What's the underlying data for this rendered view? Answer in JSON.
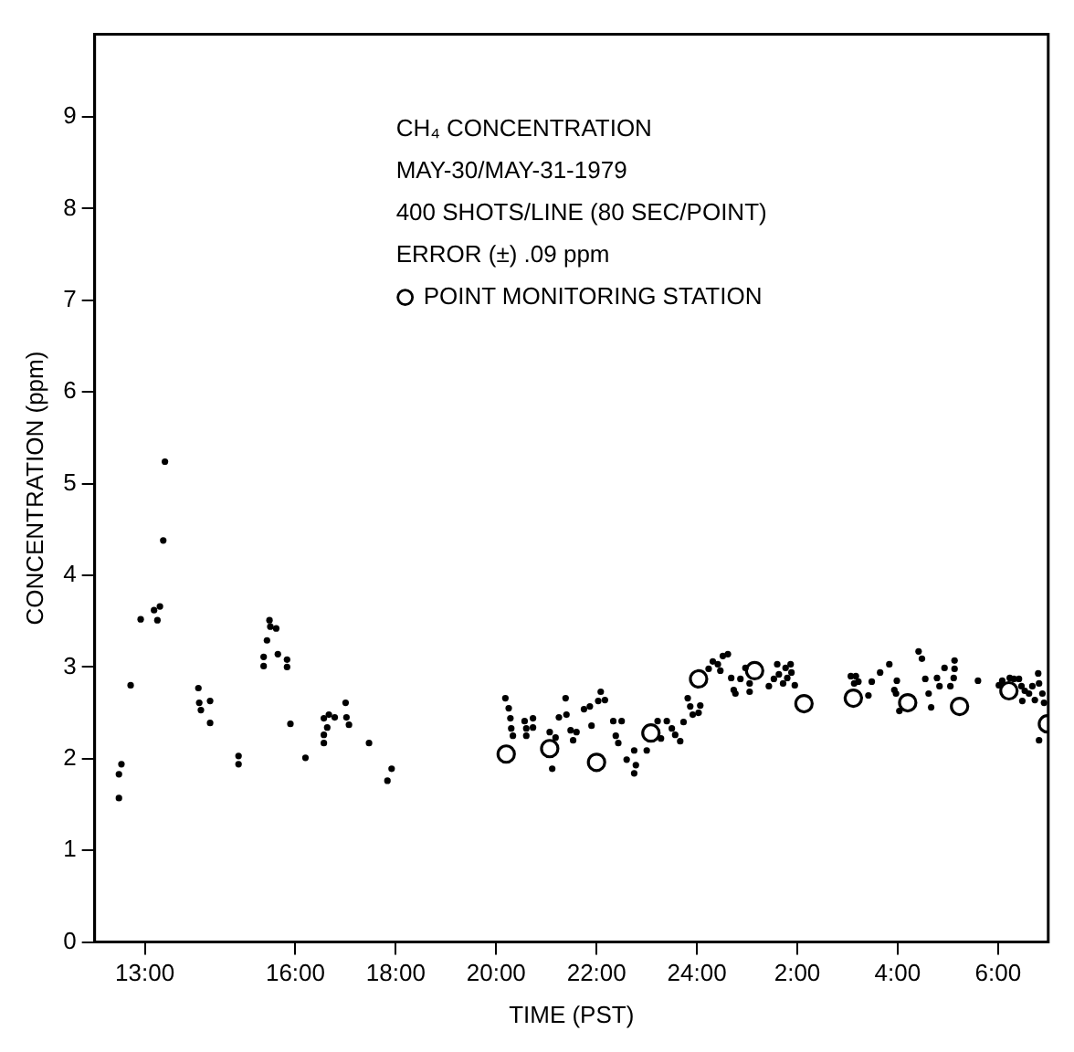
{
  "chart_data": {
    "type": "scatter",
    "xlabel": "TIME (PST)",
    "ylabel": "CONCENTRATION (ppm)",
    "annotations": [
      "CH₄ CONCENTRATION",
      "MAY-30/MAY-31-1979",
      "400 SHOTS/LINE (80 SEC/POINT)",
      "ERROR (±) .09 ppm"
    ],
    "xlim": [
      "1979-05-30T12:00",
      "1979-05-31T07:00"
    ],
    "ylim": [
      0,
      9.9
    ],
    "xticks": [
      {
        "value": "1979-05-30T13:00",
        "label": "13:00"
      },
      {
        "value": "1979-05-30T16:00",
        "label": "16:00"
      },
      {
        "value": "1979-05-30T18:00",
        "label": "18:00"
      },
      {
        "value": "1979-05-30T20:00",
        "label": "20:00"
      },
      {
        "value": "1979-05-30T22:00",
        "label": "22:00"
      },
      {
        "value": "1979-05-31T00:00",
        "label": "24:00"
      },
      {
        "value": "1979-05-31T02:00",
        "label": "2:00"
      },
      {
        "value": "1979-05-31T04:00",
        "label": "4:00"
      },
      {
        "value": "1979-05-31T06:00",
        "label": "6:00"
      }
    ],
    "yticks": [
      0,
      1,
      2,
      3,
      4,
      5,
      6,
      7,
      8,
      9
    ],
    "grid": false,
    "legend": "top",
    "series": [
      {
        "color": "#000000",
        "marker": "circle",
        "x": [
          "1979-05-30T12:29",
          "1979-05-30T12:32",
          "1979-05-30T12:29",
          "1979-05-30T12:43",
          "1979-05-30T12:55",
          "1979-05-30T13:11",
          "1979-05-30T13:18",
          "1979-05-30T13:15",
          "1979-05-30T13:22",
          "1979-05-30T13:24",
          "1979-05-30T14:04",
          "1979-05-30T14:05",
          "1979-05-30T14:07",
          "1979-05-30T14:18",
          "1979-05-30T14:18",
          "1979-05-30T14:52",
          "1979-05-30T14:52",
          "1979-05-30T15:22",
          "1979-05-30T15:22",
          "1979-05-30T15:26",
          "1979-05-30T15:29",
          "1979-05-30T15:30",
          "1979-05-30T15:37",
          "1979-05-30T15:39",
          "1979-05-30T15:50",
          "1979-05-30T15:50",
          "1979-05-30T15:54",
          "1979-05-30T16:12",
          "1979-05-30T16:34",
          "1979-05-30T16:34",
          "1979-05-30T16:34",
          "1979-05-30T16:38",
          "1979-05-30T16:40",
          "1979-05-30T16:47",
          "1979-05-30T17:00",
          "1979-05-30T17:01",
          "1979-05-30T17:04",
          "1979-05-30T17:28",
          "1979-05-30T17:50",
          "1979-05-30T17:55",
          "1979-05-30T20:11",
          "1979-05-30T20:15",
          "1979-05-30T20:17",
          "1979-05-30T20:18",
          "1979-05-30T20:20",
          "1979-05-30T20:34",
          "1979-05-30T20:36",
          "1979-05-30T20:36",
          "1979-05-30T20:44",
          "1979-05-30T20:44",
          "1979-05-30T21:04",
          "1979-05-30T21:07",
          "1979-05-30T21:11",
          "1979-05-30T21:15",
          "1979-05-30T21:23",
          "1979-05-30T21:24",
          "1979-05-30T21:29",
          "1979-05-30T21:32",
          "1979-05-30T21:36",
          "1979-05-30T21:45",
          "1979-05-30T21:52",
          "1979-05-30T21:54",
          "1979-05-30T22:02",
          "1979-05-30T22:05",
          "1979-05-30T22:10",
          "1979-05-30T22:20",
          "1979-05-30T22:23",
          "1979-05-30T22:26",
          "1979-05-30T22:30",
          "1979-05-30T22:36",
          "1979-05-30T22:45",
          "1979-05-30T22:47",
          "1979-05-30T22:45",
          "1979-05-30T23:00",
          "1979-05-30T23:13",
          "1979-05-30T23:17",
          "1979-05-30T23:24",
          "1979-05-30T23:30",
          "1979-05-30T23:34",
          "1979-05-30T23:40",
          "1979-05-30T23:44",
          "1979-05-30T23:49",
          "1979-05-30T23:52",
          "1979-05-30T23:55",
          "1979-05-31T00:02",
          "1979-05-31T00:04",
          "1979-05-31T00:14",
          "1979-05-31T00:19",
          "1979-05-31T00:25",
          "1979-05-31T00:28",
          "1979-05-31T00:31",
          "1979-05-31T00:37",
          "1979-05-31T00:41",
          "1979-05-31T00:44",
          "1979-05-31T00:46",
          "1979-05-31T00:52",
          "1979-05-31T00:58",
          "1979-05-31T01:03",
          "1979-05-31T01:03",
          "1979-05-31T01:26",
          "1979-05-31T01:32",
          "1979-05-31T01:36",
          "1979-05-31T01:38",
          "1979-05-31T01:43",
          "1979-05-31T01:46",
          "1979-05-31T01:48",
          "1979-05-31T01:52",
          "1979-05-31T01:53",
          "1979-05-31T01:57",
          "1979-05-31T03:04",
          "1979-05-31T03:10",
          "1979-05-31T03:13",
          "1979-05-31T03:08",
          "1979-05-31T03:25",
          "1979-05-31T03:29",
          "1979-05-31T03:39",
          "1979-05-31T03:50",
          "1979-05-31T03:56",
          "1979-05-31T03:59",
          "1979-05-31T03:58",
          "1979-05-31T04:02",
          "1979-05-31T04:25",
          "1979-05-31T04:29",
          "1979-05-31T04:33",
          "1979-05-31T04:37",
          "1979-05-31T04:40",
          "1979-05-31T04:47",
          "1979-05-31T04:50",
          "1979-05-31T04:56",
          "1979-05-31T05:03",
          "1979-05-31T05:08",
          "1979-05-31T05:08",
          "1979-05-31T05:07",
          "1979-05-31T05:36",
          "1979-05-31T06:01",
          "1979-05-31T06:05",
          "1979-05-31T06:14",
          "1979-05-31T06:19",
          "1979-05-31T06:25",
          "1979-05-31T06:28",
          "1979-05-31T06:32",
          "1979-05-31T06:37",
          "1979-05-31T06:41",
          "1979-05-31T06:48",
          "1979-05-31T06:49",
          "1979-05-31T06:29",
          "1979-05-31T06:44",
          "1979-05-31T06:53",
          "1979-05-31T06:55",
          "1979-05-31T06:49"
        ],
        "values": [
          1.83,
          1.94,
          1.57,
          2.8,
          3.52,
          3.62,
          3.66,
          3.51,
          4.38,
          5.24,
          2.77,
          2.61,
          2.53,
          2.63,
          2.39,
          2.03,
          1.94,
          3.11,
          3.01,
          3.29,
          3.51,
          3.44,
          3.42,
          3.14,
          3.08,
          3.0,
          2.38,
          2.01,
          2.44,
          2.26,
          2.17,
          2.34,
          2.48,
          2.45,
          2.61,
          2.45,
          2.37,
          2.17,
          1.76,
          1.89,
          2.66,
          2.55,
          2.44,
          2.33,
          2.25,
          2.41,
          2.33,
          2.25,
          2.44,
          2.34,
          2.29,
          1.89,
          2.23,
          2.45,
          2.66,
          2.48,
          2.31,
          2.2,
          2.29,
          2.54,
          2.57,
          2.36,
          2.63,
          2.73,
          2.64,
          2.41,
          2.25,
          2.17,
          2.41,
          1.99,
          2.09,
          1.93,
          1.84,
          2.09,
          2.41,
          2.22,
          2.41,
          2.33,
          2.26,
          2.19,
          2.4,
          2.66,
          2.57,
          2.48,
          2.5,
          2.58,
          2.98,
          3.06,
          3.03,
          2.96,
          3.12,
          3.14,
          2.88,
          2.75,
          2.71,
          2.87,
          2.99,
          2.82,
          2.73,
          2.79,
          2.87,
          3.03,
          2.92,
          2.82,
          2.99,
          2.88,
          3.03,
          2.94,
          2.8,
          2.9,
          2.9,
          2.84,
          2.82,
          2.69,
          2.84,
          2.94,
          3.03,
          2.75,
          2.85,
          2.71,
          2.52,
          3.17,
          3.09,
          2.87,
          2.71,
          2.56,
          2.88,
          2.79,
          2.99,
          2.79,
          3.07,
          2.98,
          2.88,
          2.85,
          2.8,
          2.85,
          2.88,
          2.87,
          2.87,
          2.79,
          2.74,
          2.71,
          2.79,
          2.93,
          2.82,
          2.63,
          2.64,
          2.71,
          2.61,
          2.2
        ]
      },
      {
        "name": "POINT MONITORING STATION",
        "color": "#000000",
        "marker": "circle",
        "x": [
          "1979-05-30T20:12",
          "1979-05-30T21:04",
          "1979-05-30T22:00",
          "1979-05-30T23:05",
          "1979-05-31T00:02",
          "1979-05-31T01:09",
          "1979-05-31T02:08",
          "1979-05-31T03:07",
          "1979-05-31T04:12",
          "1979-05-31T05:14",
          "1979-05-31T06:13",
          "1979-05-31T06:59"
        ],
        "values": [
          2.05,
          2.11,
          1.96,
          2.28,
          2.87,
          2.96,
          2.6,
          2.66,
          2.61,
          2.57,
          2.74,
          2.38
        ]
      }
    ]
  }
}
